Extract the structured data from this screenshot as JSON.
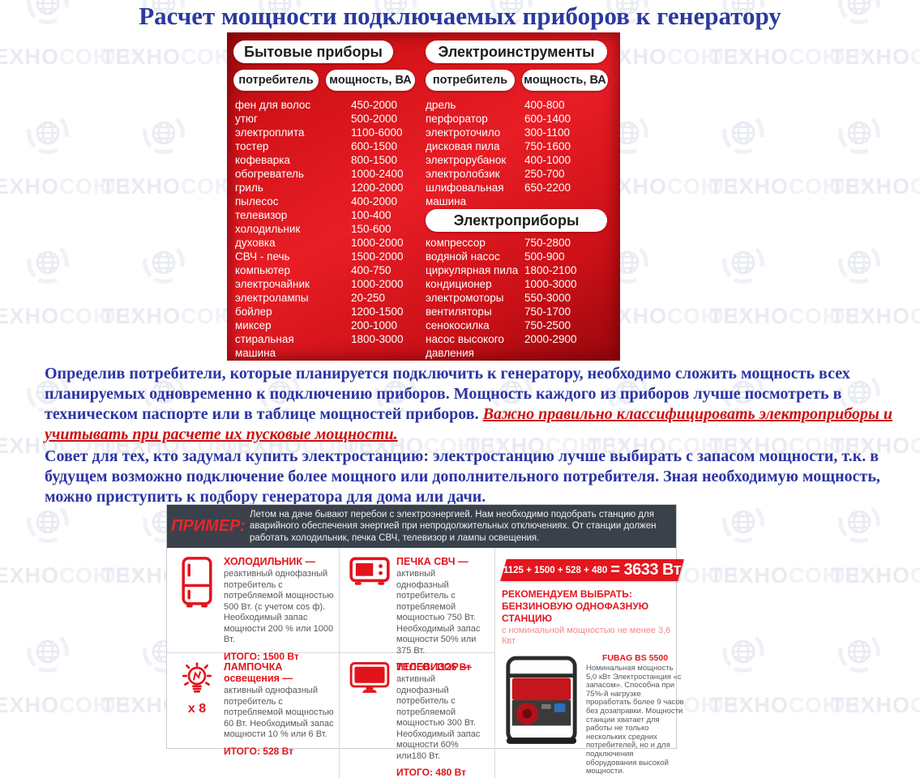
{
  "title": "Расчет мощности подключаемых приборов к генератору",
  "watermark": {
    "text_dark": "ТЕХНО",
    "text_light": "СОЮЗ",
    "reg": "®"
  },
  "power_table": {
    "left": {
      "title": "Бытовые приборы",
      "col_consumer": "потребитель",
      "col_power": "мощность, ВА",
      "rows": [
        [
          "фен для волос",
          "450-2000"
        ],
        [
          "утюг",
          "500-2000"
        ],
        [
          "электроплита",
          "1100-6000"
        ],
        [
          "тостер",
          "600-1500"
        ],
        [
          "кофеварка",
          "800-1500"
        ],
        [
          "обогреватель",
          "1000-2400"
        ],
        [
          "гриль",
          "1200-2000"
        ],
        [
          "пылесос",
          "400-2000"
        ],
        [
          "телевизор",
          "100-400"
        ],
        [
          "холодильник",
          "150-600"
        ],
        [
          "духовка",
          "1000-2000"
        ],
        [
          "СВЧ - печь",
          "1500-2000"
        ],
        [
          "компьютер",
          "400-750"
        ],
        [
          "электрочайник",
          "1000-2000"
        ],
        [
          "электролампы",
          "20-250"
        ],
        [
          "бойлер",
          "1200-1500"
        ],
        [
          "миксер",
          "200-1000"
        ],
        [
          "стиральная\nмашина",
          "1800-3000"
        ]
      ]
    },
    "right_top": {
      "title": "Электроинструменты",
      "col_consumer": "потребитель",
      "col_power": "мощность, ВА",
      "rows": [
        [
          "дрель",
          "400-800"
        ],
        [
          "перфоратор",
          "600-1400"
        ],
        [
          "электроточило",
          "300-1100"
        ],
        [
          "дисковая пила",
          "750-1600"
        ],
        [
          "электрорубанок",
          "400-1000"
        ],
        [
          "электролобзик",
          "250-700"
        ],
        [
          "шлифовальная\nмашина",
          "650-2200"
        ]
      ]
    },
    "right_bottom": {
      "title": "Электроприборы",
      "rows": [
        [
          "компрессор",
          "750-2800"
        ],
        [
          "водяной насос",
          "500-900"
        ],
        [
          "циркулярная пила",
          "1800-2100"
        ],
        [
          "кондиционер",
          "1000-3000"
        ],
        [
          "электромоторы",
          "550-3000"
        ],
        [
          "вентиляторы",
          "750-1700"
        ],
        [
          "сенокосилка",
          "750-2500"
        ],
        [
          "насос высокого\nдавления",
          "2000-2900"
        ]
      ]
    }
  },
  "paragraph1": {
    "blue": "Определив потребители, которые планируется подключить к генератору, необходимо сложить мощность всех планируемых одновременно к подключению приборов. Мощность каждого из приборов лучше посмотреть в техническом паспорте или в таблице мощностей приборов. ",
    "red": "Важно правильно классифицировать электроприборы и учитывать при расчете их пусковые мощности."
  },
  "paragraph2": "Совет для тех, кто задумал купить электростанцию: электростанцию лучше выбирать с запасом мощности, т.к. в будущем возможно подключение более мощного или дополнительного потребителя. Зная необходимую мощность, можно приступить к подбору генератора для дома или дачи.",
  "example": {
    "label": "ПРИМЕР:",
    "intro": "Летом на даче бывают перебои с электроэнергией. Нам необходимо подобрать станцию для аварийного обеспечения энергией при непродолжительных отключениях. От станции должен работать холодильник, печка СВЧ, телевизор и лампы освещения.",
    "items": [
      {
        "icon": "fridge-icon",
        "title": "ХОЛОДИЛЬНИК —",
        "desc": "реактивный однофазный потребитель с потребляемой мощностью 500 Вт. (с учетом cos ф). Необходимый запас мощности 200 % или 1000 Вт.",
        "total": "ИТОГО: 1500 Вт"
      },
      {
        "icon": "microwave-icon",
        "title": "ПЕЧКА СВЧ —",
        "desc": "активный однофазный потребитель с потребляемой мощностью 750 Вт. Необходимый запас мощности 50% или 375 Вт.",
        "total": "ИТОГО: 1125 Вт"
      },
      {
        "icon": "bulb-icon",
        "multiplier": "х 8",
        "title": "ЛАМПОЧКА освещения —",
        "desc": "активный однофазный потребитель с потребляемой мощностью 60 Вт. Необходимый запас мощности 10 % или 6 Вт.",
        "total": "ИТОГО: 528 Вт"
      },
      {
        "icon": "tv-icon",
        "title": "ТЕЛЕВИЗОР —",
        "desc": "активный однофазный потребитель с потребляемой мощностью 300 Вт. Необходимый запас мощности 60% или180 Вт.",
        "total": "ИТОГО: 480 Вт"
      }
    ],
    "sum_formula": "1125 + 1500 + 528 + 480",
    "sum_result": "= 3633 Вт",
    "recommend_line1": "РЕКОМЕНДУЕМ ВЫБРАТЬ:",
    "recommend_line2": "БЕНЗИНОВУЮ ОДНОФАЗНУЮ СТАНЦИЮ",
    "recommend_line3": "с номинальной мощностью не менее 3,6 Квт",
    "product": {
      "name": "FUBAG BS 5500",
      "desc": "Номинальная мощность 5,0 кВт Электростанция «с запасом». Способна при 75%-й нагрузке проработать более 9 часов без дозаправки. Мощности станции хватает для работы не только нескольких средних потребителей, но и для подключения оборудования высокой мощности."
    }
  },
  "colors": {
    "accent_red": "#e3161d",
    "table_red": "#d41319",
    "title_blue": "#2b35a3",
    "header_dark": "#3a414b"
  }
}
